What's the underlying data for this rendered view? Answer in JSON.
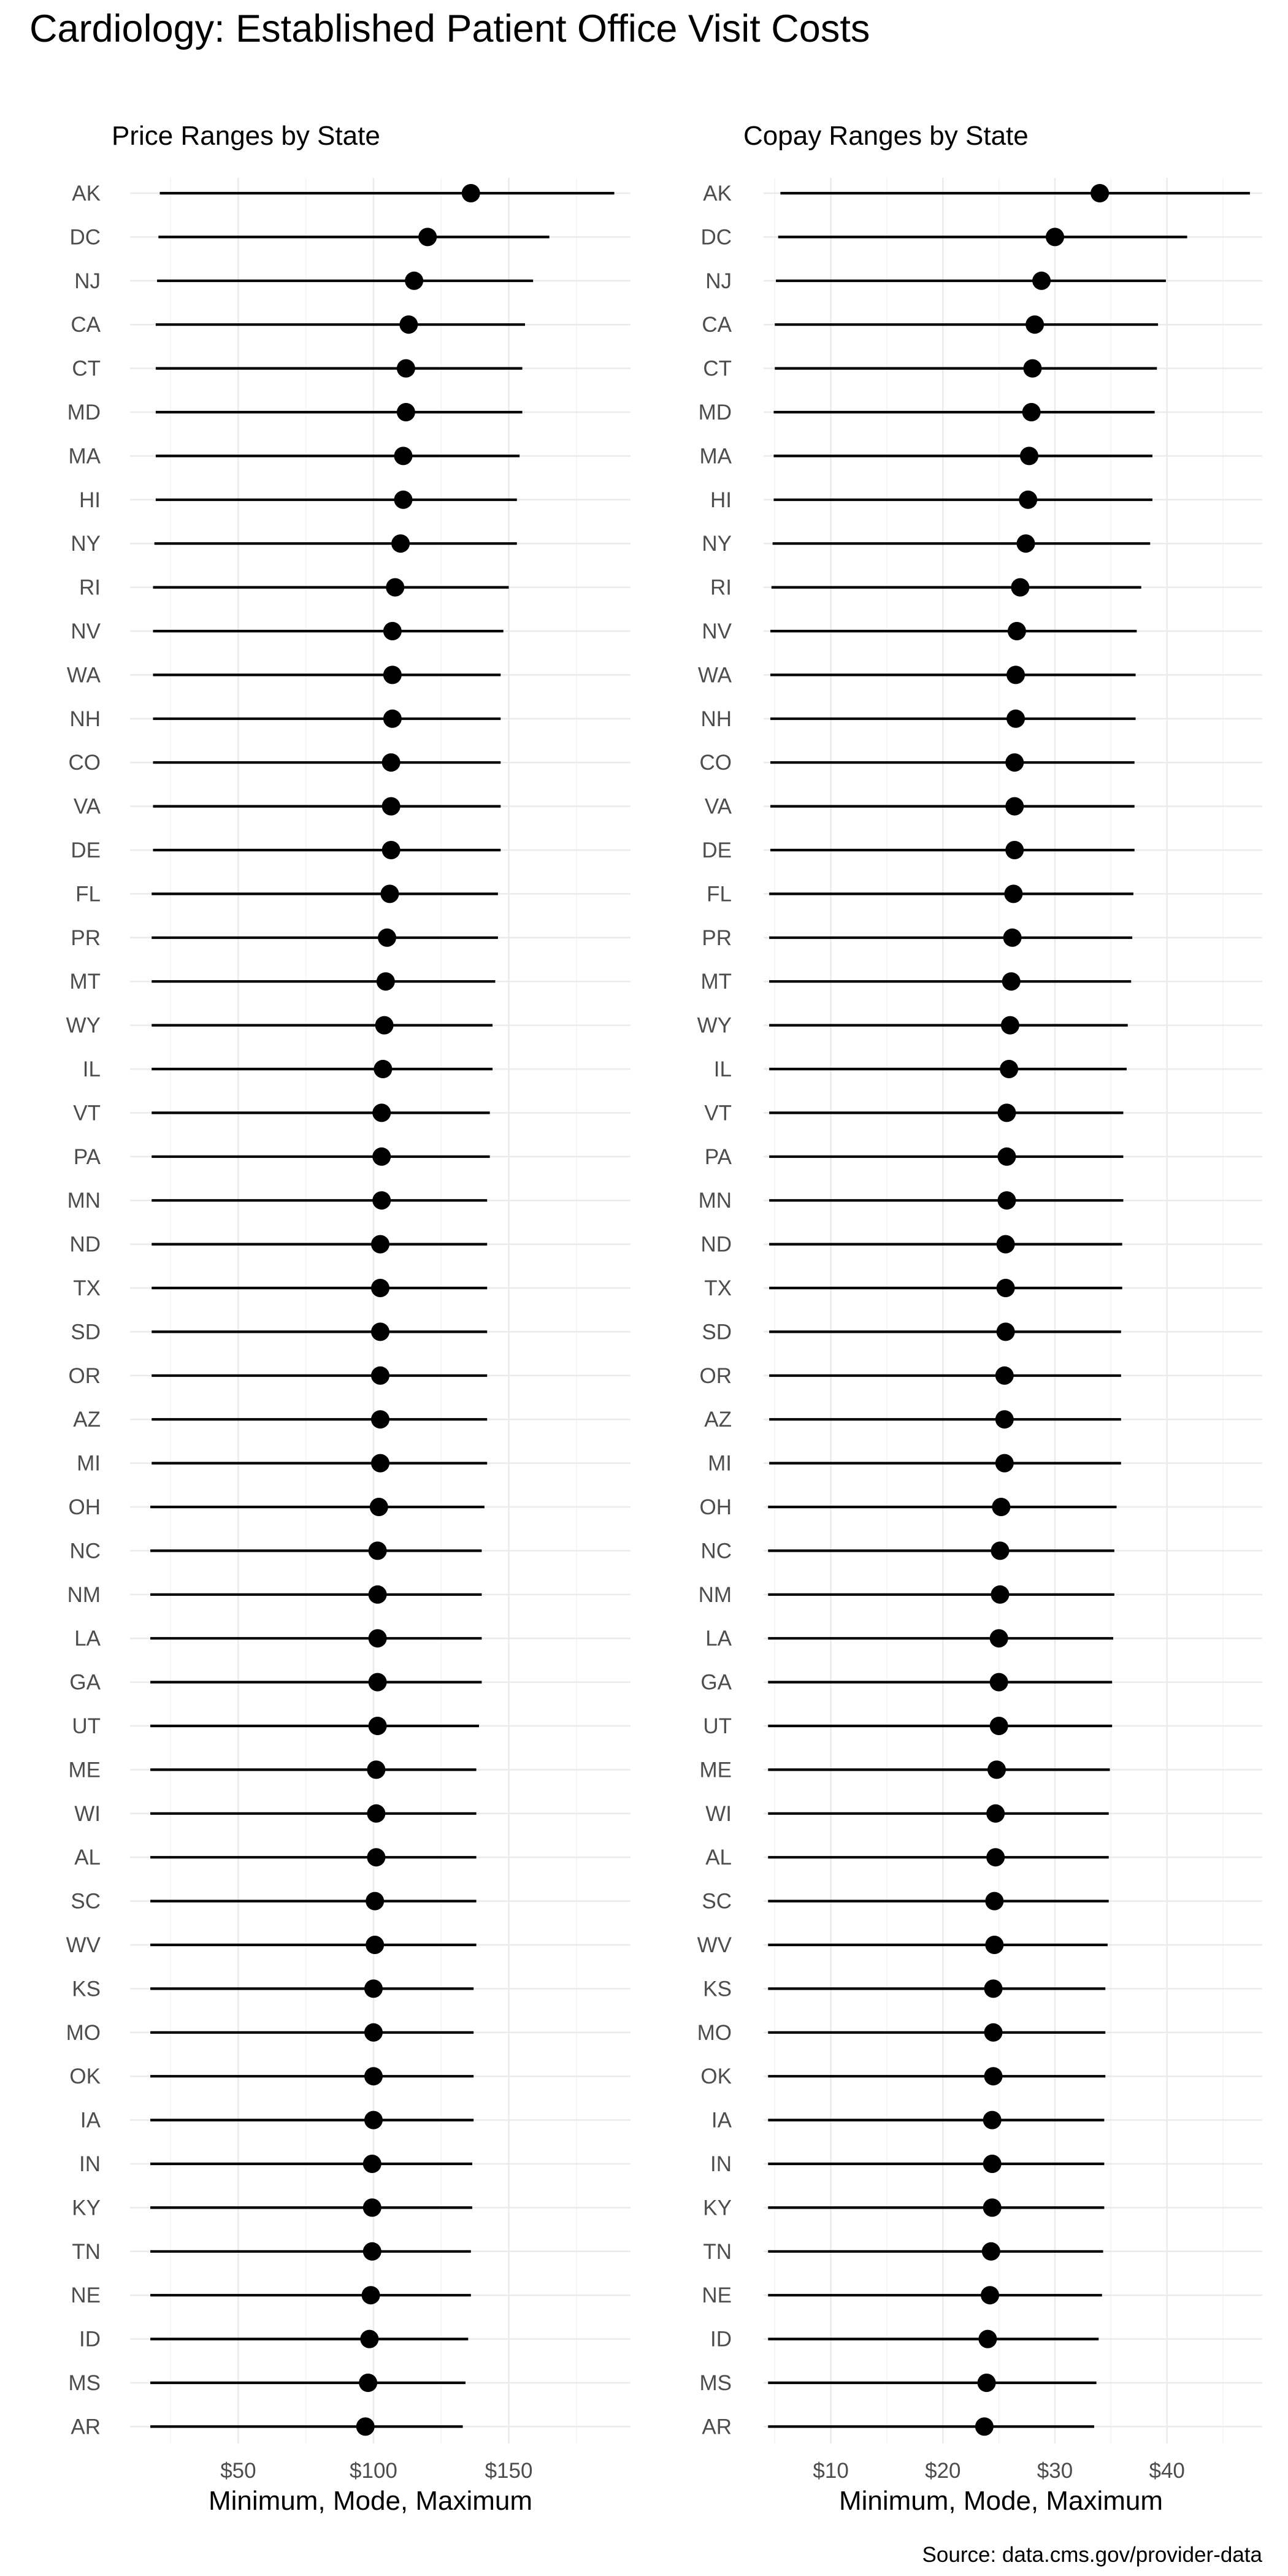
{
  "title": "Cardiology: Established Patient Office Visit Costs",
  "caption": "Source: data.cms.gov/provider-data",
  "chart_data": [
    {
      "type": "range-dot",
      "subtitle": "Price Ranges by State",
      "xlabel": "Minimum, Mode, Maximum",
      "xlim": [
        10,
        195
      ],
      "ticks": [
        50,
        100,
        150
      ],
      "tick_labels": [
        "$50",
        "$100",
        "$150"
      ],
      "grid": true,
      "states": [
        "AK",
        "DC",
        "NJ",
        "CA",
        "CT",
        "MD",
        "MA",
        "HI",
        "NY",
        "RI",
        "NV",
        "WA",
        "NH",
        "CO",
        "VA",
        "DE",
        "FL",
        "PR",
        "MT",
        "WY",
        "IL",
        "VT",
        "PA",
        "MN",
        "ND",
        "TX",
        "SD",
        "OR",
        "AZ",
        "MI",
        "OH",
        "NC",
        "NM",
        "LA",
        "GA",
        "UT",
        "ME",
        "WI",
        "AL",
        "SC",
        "WV",
        "KS",
        "MO",
        "OK",
        "IA",
        "IN",
        "KY",
        "TN",
        "NE",
        "ID",
        "MS",
        "AR"
      ],
      "min": [
        21,
        20.5,
        20,
        19.5,
        19.5,
        19.5,
        19.5,
        19.5,
        19,
        18.5,
        18.5,
        18.5,
        18.5,
        18.5,
        18.5,
        18.5,
        18,
        18,
        18,
        18,
        18,
        18,
        18,
        18,
        18,
        18,
        18,
        18,
        18,
        18,
        17.5,
        17.5,
        17.5,
        17.5,
        17.5,
        17.5,
        17.5,
        17.5,
        17.5,
        17.5,
        17.5,
        17.5,
        17.5,
        17.5,
        17.5,
        17.5,
        17.5,
        17.5,
        17.5,
        17.5,
        17.5,
        17.5
      ],
      "mode": [
        136,
        120,
        115,
        113,
        112,
        112,
        111,
        111,
        110,
        108,
        107,
        107,
        107,
        106.5,
        106.5,
        106.5,
        106,
        105,
        104.5,
        104,
        103.5,
        103,
        103,
        103,
        102.5,
        102.5,
        102.5,
        102.5,
        102.5,
        102.5,
        102,
        101.5,
        101.5,
        101.5,
        101.5,
        101.5,
        101,
        101,
        101,
        100.5,
        100.5,
        100,
        100,
        100,
        100,
        99.5,
        99.5,
        99.5,
        99,
        98.5,
        98,
        97
      ],
      "max": [
        189,
        165,
        159,
        156,
        155,
        155,
        154,
        153,
        153,
        150,
        148,
        147,
        147,
        147,
        147,
        147,
        146,
        146,
        145,
        144,
        144,
        143,
        143,
        142,
        142,
        142,
        142,
        142,
        142,
        142,
        141,
        140,
        140,
        140,
        140,
        139,
        138,
        138,
        138,
        138,
        138,
        137,
        137,
        137,
        137,
        136.5,
        136.5,
        136,
        136,
        135,
        134,
        133
      ]
    },
    {
      "type": "range-dot",
      "subtitle": "Copay Ranges by State",
      "xlabel": "Minimum, Mode, Maximum",
      "xlim": [
        4,
        48.5
      ],
      "ticks": [
        10,
        20,
        30,
        40
      ],
      "tick_labels": [
        "$10",
        "$20",
        "$30",
        "$40"
      ],
      "grid": true,
      "states": [
        "AK",
        "DC",
        "NJ",
        "CA",
        "CT",
        "MD",
        "MA",
        "HI",
        "NY",
        "RI",
        "NV",
        "WA",
        "NH",
        "CO",
        "VA",
        "DE",
        "FL",
        "PR",
        "MT",
        "WY",
        "IL",
        "VT",
        "PA",
        "MN",
        "ND",
        "TX",
        "SD",
        "OR",
        "AZ",
        "MI",
        "OH",
        "NC",
        "NM",
        "LA",
        "GA",
        "UT",
        "ME",
        "WI",
        "AL",
        "SC",
        "WV",
        "KS",
        "MO",
        "OK",
        "IA",
        "IN",
        "KY",
        "TN",
        "NE",
        "ID",
        "MS",
        "AR"
      ],
      "min": [
        5.5,
        5.3,
        5.1,
        5,
        5,
        4.9,
        4.9,
        4.9,
        4.8,
        4.7,
        4.6,
        4.6,
        4.6,
        4.6,
        4.6,
        4.6,
        4.5,
        4.5,
        4.5,
        4.5,
        4.5,
        4.5,
        4.5,
        4.5,
        4.5,
        4.5,
        4.5,
        4.5,
        4.5,
        4.5,
        4.4,
        4.4,
        4.4,
        4.4,
        4.4,
        4.4,
        4.4,
        4.4,
        4.4,
        4.4,
        4.4,
        4.4,
        4.4,
        4.4,
        4.4,
        4.4,
        4.4,
        4.4,
        4.4,
        4.4,
        4.4,
        4.4
      ],
      "mode": [
        34,
        30,
        28.8,
        28.2,
        28,
        27.9,
        27.7,
        27.6,
        27.4,
        26.9,
        26.6,
        26.5,
        26.5,
        26.4,
        26.4,
        26.4,
        26.3,
        26.2,
        26.1,
        26,
        25.9,
        25.7,
        25.7,
        25.7,
        25.6,
        25.6,
        25.6,
        25.5,
        25.5,
        25.5,
        25.2,
        25.1,
        25.1,
        25,
        25,
        25,
        24.8,
        24.7,
        24.7,
        24.6,
        24.6,
        24.5,
        24.5,
        24.5,
        24.4,
        24.4,
        24.4,
        24.3,
        24.2,
        24,
        23.9,
        23.7
      ],
      "max": [
        47.4,
        41.8,
        39.9,
        39.2,
        39.1,
        38.9,
        38.7,
        38.7,
        38.5,
        37.7,
        37.3,
        37.2,
        37.2,
        37.1,
        37.1,
        37.1,
        37,
        36.9,
        36.8,
        36.5,
        36.4,
        36.1,
        36.1,
        36.1,
        36,
        36,
        35.9,
        35.9,
        35.9,
        35.9,
        35.5,
        35.3,
        35.3,
        35.2,
        35.1,
        35.1,
        34.9,
        34.8,
        34.8,
        34.8,
        34.7,
        34.5,
        34.5,
        34.5,
        34.4,
        34.4,
        34.4,
        34.3,
        34.2,
        33.9,
        33.7,
        33.5
      ]
    }
  ]
}
